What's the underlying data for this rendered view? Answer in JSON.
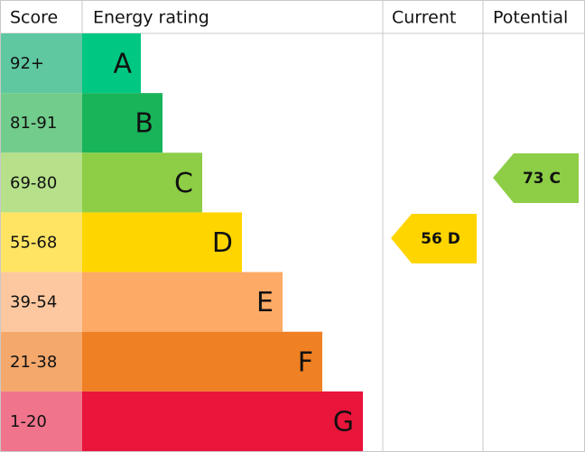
{
  "header": {
    "score": "Score",
    "rating": "Energy rating",
    "current": "Current",
    "potential": "Potential"
  },
  "bands": [
    {
      "score": "92+",
      "letter": "A",
      "color": "#00c781",
      "score_color": "#5fc8a0"
    },
    {
      "score": "81-91",
      "letter": "B",
      "color": "#19b459",
      "score_color": "#72cc8b"
    },
    {
      "score": "69-80",
      "letter": "C",
      "color": "#8dce46",
      "score_color": "#b6e08a"
    },
    {
      "score": "55-68",
      "letter": "D",
      "color": "#ffd500",
      "score_color": "#ffe463"
    },
    {
      "score": "39-54",
      "letter": "E",
      "color": "#fcaa65",
      "score_color": "#fdc8a0"
    },
    {
      "score": "21-38",
      "letter": "F",
      "color": "#ef8023",
      "score_color": "#f4a86b"
    },
    {
      "score": "1-20",
      "letter": "G",
      "color": "#e9153b",
      "score_color": "#f0748c"
    }
  ],
  "current": {
    "label": "56 D",
    "color": "#ffd500"
  },
  "potential": {
    "label": "73 C",
    "color": "#8dce46"
  }
}
